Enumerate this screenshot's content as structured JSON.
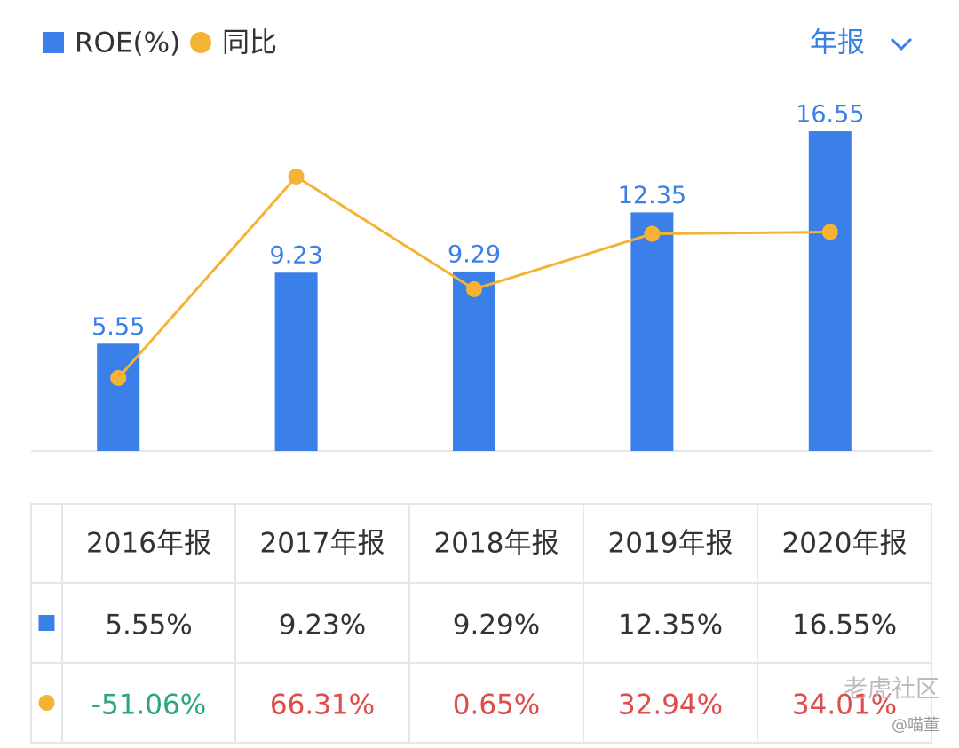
{
  "chart_data": {
    "type": "bar",
    "categories": [
      "2016年报",
      "2017年报",
      "2018年报",
      "2019年报",
      "2020年报"
    ],
    "series": [
      {
        "name": "ROE(%)",
        "type": "bar",
        "color": "#3b7fe8",
        "values": [
          5.55,
          9.23,
          9.29,
          12.35,
          16.55
        ],
        "value_labels": [
          "5.55%",
          "9.23%",
          "9.29%",
          "12.35%",
          "16.55%"
        ]
      },
      {
        "name": "同比",
        "type": "line",
        "axis": "y2",
        "color": "#f5b335",
        "values": [
          -51.06,
          66.31,
          0.65,
          32.94,
          34.01
        ],
        "value_labels": [
          "-51.06%",
          "66.31%",
          "0.65%",
          "32.94%",
          "34.01%"
        ]
      }
    ],
    "ylim": [
      0,
      20
    ],
    "y2lim": [
      -93.5,
      131.5
    ],
    "period_selector": "年报",
    "watermark": [
      "老虎社区",
      "@喵董"
    ]
  }
}
